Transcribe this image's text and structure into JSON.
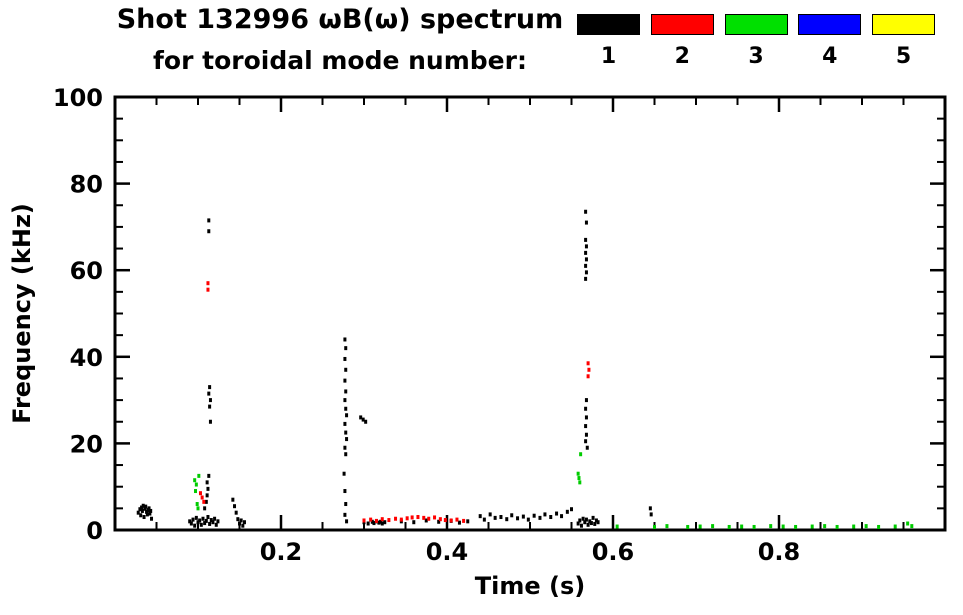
{
  "title": {
    "line1": "Shot 132996 ωB(ω) spectrum",
    "line2": "for toroidal mode number:"
  },
  "legend": {
    "items": [
      {
        "label": "1",
        "color": "#000000"
      },
      {
        "label": "2",
        "color": "#ff0000"
      },
      {
        "label": "3",
        "color": "#00e000"
      },
      {
        "label": "4",
        "color": "#0000ff"
      },
      {
        "label": "5",
        "color": "#ffff00"
      }
    ]
  },
  "chart_data": {
    "type": "scatter",
    "title": "Shot 132996 ωB(ω) spectrum for toroidal mode number: 1 2 3 4 5",
    "xlabel": "Time (s)",
    "ylabel": "Frequency (kHz)",
    "xlim": [
      0.0,
      1.0
    ],
    "ylim": [
      0,
      100
    ],
    "x_major_ticks": [
      0.2,
      0.4,
      0.6,
      0.8
    ],
    "x_tick_labels": [
      "0.2",
      "0.4",
      "0.6",
      "0.8"
    ],
    "x_minor_step": 0.05,
    "y_major_ticks": [
      0,
      20,
      40,
      60,
      80,
      100
    ],
    "y_tick_labels": [
      "0",
      "20",
      "40",
      "60",
      "80",
      "100"
    ],
    "y_minor_step": 5,
    "grid": false,
    "legend_position": "top-right",
    "series": [
      {
        "name": "n=1",
        "color": "#000000",
        "points": [
          [
            0.028,
            4.0
          ],
          [
            0.03,
            4.8
          ],
          [
            0.031,
            3.4
          ],
          [
            0.032,
            5.2
          ],
          [
            0.033,
            4.4
          ],
          [
            0.034,
            5.6
          ],
          [
            0.035,
            3.0
          ],
          [
            0.036,
            4.9
          ],
          [
            0.037,
            5.4
          ],
          [
            0.038,
            4.2
          ],
          [
            0.039,
            3.6
          ],
          [
            0.04,
            4.6
          ],
          [
            0.041,
            5.0
          ],
          [
            0.042,
            3.8
          ],
          [
            0.043,
            4.4
          ],
          [
            0.044,
            2.6
          ],
          [
            0.09,
            2.0
          ],
          [
            0.092,
            1.5
          ],
          [
            0.094,
            2.4
          ],
          [
            0.096,
            1.0
          ],
          [
            0.098,
            2.8
          ],
          [
            0.1,
            1.8
          ],
          [
            0.102,
            2.2
          ],
          [
            0.104,
            1.2
          ],
          [
            0.106,
            2.6
          ],
          [
            0.108,
            1.6
          ],
          [
            0.11,
            2.1
          ],
          [
            0.112,
            3.0
          ],
          [
            0.114,
            1.4
          ],
          [
            0.116,
            2.3
          ],
          [
            0.118,
            1.8
          ],
          [
            0.12,
            2.6
          ],
          [
            0.122,
            1.2
          ],
          [
            0.124,
            2.0
          ],
          [
            0.108,
            5.0
          ],
          [
            0.11,
            6.5
          ],
          [
            0.111,
            8.0
          ],
          [
            0.112,
            9.5
          ],
          [
            0.111,
            11.0
          ],
          [
            0.113,
            12.5
          ],
          [
            0.113,
            71.5
          ],
          [
            0.113,
            69.0
          ],
          [
            0.114,
            33.0
          ],
          [
            0.113,
            31.5
          ],
          [
            0.115,
            30.0
          ],
          [
            0.114,
            28.5
          ],
          [
            0.115,
            25.0
          ],
          [
            0.142,
            7.0
          ],
          [
            0.144,
            5.5
          ],
          [
            0.146,
            4.0
          ],
          [
            0.148,
            2.5
          ],
          [
            0.15,
            1.5
          ],
          [
            0.152,
            2.2
          ],
          [
            0.154,
            1.0
          ],
          [
            0.156,
            1.8
          ],
          [
            0.277,
            44.0
          ],
          [
            0.278,
            42.0
          ],
          [
            0.277,
            39.5
          ],
          [
            0.278,
            37.0
          ],
          [
            0.277,
            34.5
          ],
          [
            0.278,
            32.0
          ],
          [
            0.277,
            30.0
          ],
          [
            0.278,
            28.0
          ],
          [
            0.279,
            26.5
          ],
          [
            0.277,
            24.5
          ],
          [
            0.278,
            22.5
          ],
          [
            0.279,
            21.0
          ],
          [
            0.277,
            19.0
          ],
          [
            0.278,
            17.5
          ],
          [
            0.276,
            13.0
          ],
          [
            0.277,
            9.0
          ],
          [
            0.278,
            6.0
          ],
          [
            0.277,
            3.5
          ],
          [
            0.279,
            2.0
          ],
          [
            0.296,
            26.0
          ],
          [
            0.299,
            25.5
          ],
          [
            0.302,
            25.0
          ],
          [
            0.3,
            1.8
          ],
          [
            0.305,
            1.5
          ],
          [
            0.31,
            1.9
          ],
          [
            0.312,
            1.6
          ],
          [
            0.315,
            2.0
          ],
          [
            0.318,
            1.7
          ],
          [
            0.32,
            1.9
          ],
          [
            0.322,
            1.5
          ],
          [
            0.325,
            1.8
          ],
          [
            0.345,
            2.0
          ],
          [
            0.36,
            1.8
          ],
          [
            0.375,
            2.2
          ],
          [
            0.39,
            1.9
          ],
          [
            0.405,
            2.1
          ],
          [
            0.415,
            1.7
          ],
          [
            0.425,
            2.0
          ],
          [
            0.44,
            3.2
          ],
          [
            0.445,
            2.4
          ],
          [
            0.452,
            3.6
          ],
          [
            0.458,
            2.8
          ],
          [
            0.465,
            3.0
          ],
          [
            0.472,
            2.5
          ],
          [
            0.478,
            3.4
          ],
          [
            0.485,
            2.7
          ],
          [
            0.492,
            3.1
          ],
          [
            0.498,
            2.4
          ],
          [
            0.505,
            3.3
          ],
          [
            0.512,
            2.8
          ],
          [
            0.518,
            3.6
          ],
          [
            0.525,
            3.0
          ],
          [
            0.532,
            3.8
          ],
          [
            0.538,
            3.2
          ],
          [
            0.545,
            4.2
          ],
          [
            0.55,
            4.8
          ],
          [
            0.567,
            73.5
          ],
          [
            0.568,
            71.0
          ],
          [
            0.567,
            67.0
          ],
          [
            0.568,
            65.5
          ],
          [
            0.567,
            64.0
          ],
          [
            0.568,
            62.5
          ],
          [
            0.567,
            61.0
          ],
          [
            0.568,
            59.5
          ],
          [
            0.567,
            58.0
          ],
          [
            0.568,
            30.0
          ],
          [
            0.567,
            28.0
          ],
          [
            0.568,
            26.0
          ],
          [
            0.567,
            24.0
          ],
          [
            0.568,
            22.0
          ],
          [
            0.567,
            20.5
          ],
          [
            0.569,
            19.0
          ],
          [
            0.558,
            1.5
          ],
          [
            0.56,
            2.2
          ],
          [
            0.562,
            1.0
          ],
          [
            0.564,
            2.6
          ],
          [
            0.566,
            1.8
          ],
          [
            0.568,
            2.4
          ],
          [
            0.57,
            1.2
          ],
          [
            0.572,
            2.0
          ],
          [
            0.574,
            1.6
          ],
          [
            0.576,
            2.8
          ],
          [
            0.578,
            1.4
          ],
          [
            0.58,
            2.2
          ],
          [
            0.582,
            1.8
          ],
          [
            0.645,
            5.0
          ],
          [
            0.646,
            3.6
          ]
        ]
      },
      {
        "name": "n=2",
        "color": "#ff0000",
        "points": [
          [
            0.103,
            8.5
          ],
          [
            0.105,
            7.5
          ],
          [
            0.107,
            6.5
          ],
          [
            0.112,
            57.0
          ],
          [
            0.112,
            55.5
          ],
          [
            0.3,
            2.2
          ],
          [
            0.308,
            2.4
          ],
          [
            0.315,
            2.1
          ],
          [
            0.322,
            2.5
          ],
          [
            0.33,
            2.3
          ],
          [
            0.338,
            2.6
          ],
          [
            0.345,
            2.4
          ],
          [
            0.352,
            2.7
          ],
          [
            0.358,
            2.9
          ],
          [
            0.365,
            3.0
          ],
          [
            0.372,
            2.8
          ],
          [
            0.378,
            2.6
          ],
          [
            0.385,
            2.9
          ],
          [
            0.392,
            2.5
          ],
          [
            0.398,
            2.3
          ],
          [
            0.405,
            2.2
          ],
          [
            0.412,
            2.4
          ],
          [
            0.42,
            2.1
          ],
          [
            0.57,
            38.5
          ],
          [
            0.571,
            37.0
          ],
          [
            0.57,
            35.5
          ]
        ]
      },
      {
        "name": "n=3",
        "color": "#00cc00",
        "points": [
          [
            0.096,
            11.5
          ],
          [
            0.097,
            9.0
          ],
          [
            0.098,
            10.5
          ],
          [
            0.099,
            6.0
          ],
          [
            0.1,
            5.0
          ],
          [
            0.101,
            12.5
          ],
          [
            0.558,
            13.0
          ],
          [
            0.559,
            12.0
          ],
          [
            0.56,
            11.0
          ],
          [
            0.561,
            17.5
          ],
          [
            0.605,
            0.8
          ],
          [
            0.65,
            0.7
          ],
          [
            0.665,
            0.9
          ],
          [
            0.69,
            0.7
          ],
          [
            0.705,
            0.8
          ],
          [
            0.72,
            0.9
          ],
          [
            0.74,
            0.7
          ],
          [
            0.755,
            0.8
          ],
          [
            0.77,
            0.7
          ],
          [
            0.79,
            0.9
          ],
          [
            0.805,
            0.8
          ],
          [
            0.82,
            0.7
          ],
          [
            0.84,
            0.8
          ],
          [
            0.855,
            0.9
          ],
          [
            0.87,
            0.7
          ],
          [
            0.89,
            0.8
          ],
          [
            0.905,
            0.9
          ],
          [
            0.92,
            0.7
          ],
          [
            0.94,
            0.8
          ],
          [
            0.955,
            1.5
          ],
          [
            0.96,
            0.9
          ]
        ]
      },
      {
        "name": "n=4",
        "color": "#0000ff",
        "points": []
      },
      {
        "name": "n=5",
        "color": "#ffff00",
        "points": []
      }
    ]
  }
}
